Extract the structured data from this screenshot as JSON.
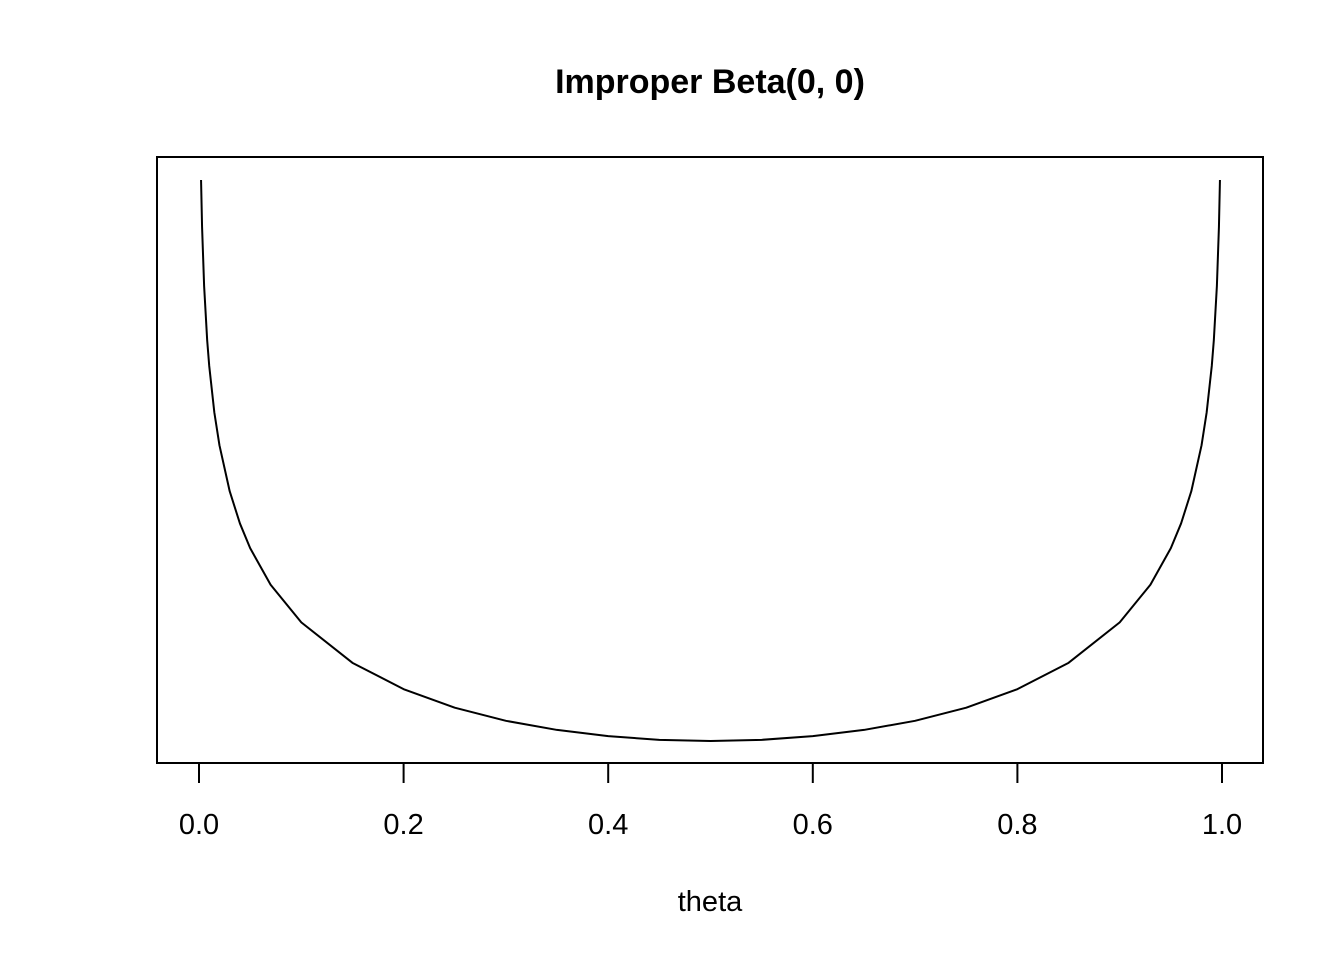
{
  "chart_data": {
    "type": "line",
    "title": "Improper Beta(0, 0)",
    "xlabel": "theta",
    "ylabel": "",
    "xlim": [
      0.0,
      1.0
    ],
    "y_axis_shown": false,
    "grid": false,
    "legend": "none",
    "x_ticks": [
      "0.0",
      "0.2",
      "0.4",
      "0.6",
      "0.8",
      "1.0"
    ],
    "x_tick_values": [
      0.0,
      0.2,
      0.4,
      0.6,
      0.8,
      1.0
    ],
    "series": [
      {
        "color": "#000000",
        "x": [
          0.002,
          0.003,
          0.005,
          0.008,
          0.01,
          0.015,
          0.02,
          0.03,
          0.04,
          0.05,
          0.07,
          0.1,
          0.15,
          0.2,
          0.25,
          0.3,
          0.35,
          0.4,
          0.45,
          0.5,
          0.55,
          0.6,
          0.65,
          0.7,
          0.75,
          0.8,
          0.85,
          0.9,
          0.93,
          0.95,
          0.96,
          0.97,
          0.98,
          0.985,
          0.99,
          0.992,
          0.995,
          0.997,
          0.998
        ],
        "y": [
          501.0,
          334.34,
          201.0,
          126.0,
          101.01,
          67.68,
          51.02,
          34.36,
          26.04,
          21.05,
          15.36,
          11.11,
          7.84,
          6.25,
          5.33,
          4.76,
          4.4,
          4.17,
          4.04,
          4.0,
          4.04,
          4.17,
          4.4,
          4.76,
          5.33,
          6.25,
          7.84,
          11.11,
          15.36,
          21.05,
          26.04,
          34.36,
          51.02,
          67.68,
          101.01,
          126.0,
          201.0,
          334.34,
          501.0
        ]
      }
    ]
  }
}
